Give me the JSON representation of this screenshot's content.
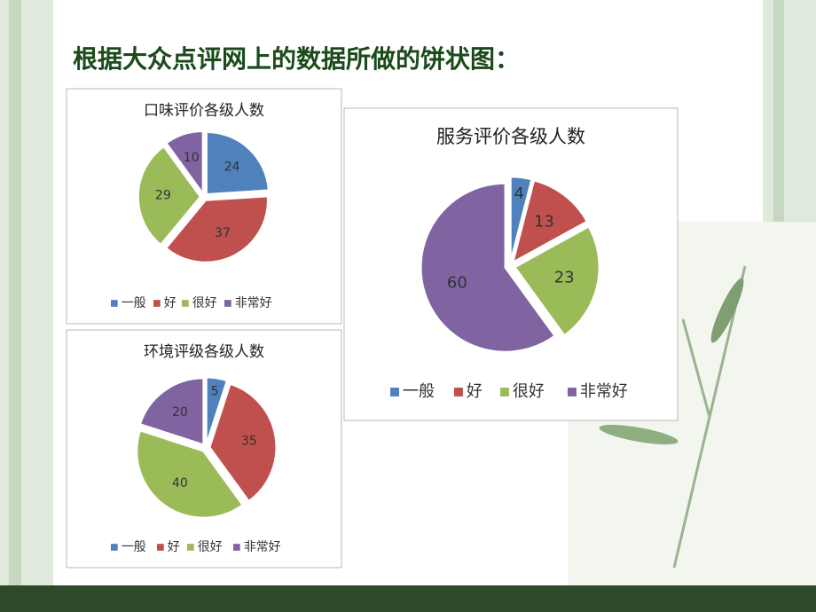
{
  "title": "根据大众点评网上的数据所做的饼状图：",
  "chart_data": [
    {
      "type": "pie",
      "title": "口味评价各级人数",
      "categories": [
        "一般",
        "好",
        "很好",
        "非常好"
      ],
      "values": [
        24,
        37,
        29,
        10
      ],
      "colors": [
        "#4f81bd",
        "#c0504d",
        "#9bbb59",
        "#8064a2"
      ]
    },
    {
      "type": "pie",
      "title": "服务评价各级人数",
      "categories": [
        "一般",
        "好",
        "很好",
        "非常好"
      ],
      "values": [
        4,
        13,
        23,
        60
      ],
      "colors": [
        "#4f81bd",
        "#c0504d",
        "#9bbb59",
        "#8064a2"
      ]
    },
    {
      "type": "pie",
      "title": "环境评级各级人数",
      "categories": [
        "一般",
        "好",
        "很好",
        "非常好"
      ],
      "values": [
        5,
        35,
        40,
        20
      ],
      "colors": [
        "#4f81bd",
        "#c0504d",
        "#9bbb59",
        "#8064a2"
      ]
    }
  ]
}
